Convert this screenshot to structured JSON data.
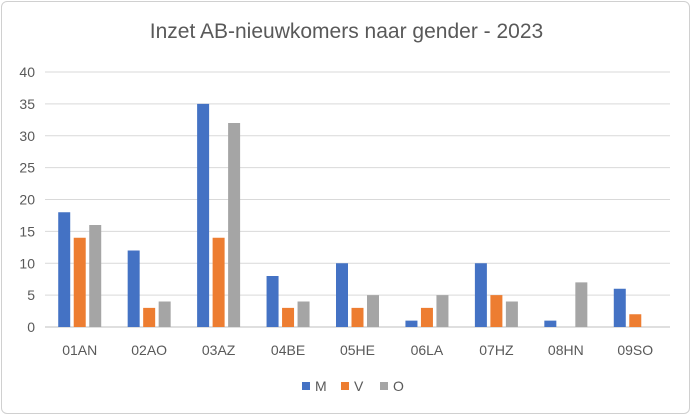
{
  "chart_data": {
    "type": "bar",
    "title": "Inzet AB-nieuwkomers naar gender - 2023",
    "categories": [
      "01AN",
      "02AO",
      "03AZ",
      "04BE",
      "05HE",
      "06LA",
      "07HZ",
      "08HN",
      "09SO"
    ],
    "series": [
      {
        "name": "M",
        "color": "#4472c4",
        "values": [
          18,
          12,
          35,
          8,
          10,
          1,
          10,
          1,
          6
        ]
      },
      {
        "name": "V",
        "color": "#ed7d31",
        "values": [
          14,
          3,
          14,
          3,
          3,
          3,
          5,
          0,
          2
        ]
      },
      {
        "name": "O",
        "color": "#a5a5a5",
        "values": [
          16,
          4,
          32,
          4,
          5,
          5,
          4,
          7,
          0
        ]
      }
    ],
    "ylim": [
      0,
      40
    ],
    "yticks": [
      0,
      5,
      10,
      15,
      20,
      25,
      30,
      35,
      40
    ],
    "grid": true,
    "legend": "bottom",
    "xlabel": "",
    "ylabel": ""
  }
}
